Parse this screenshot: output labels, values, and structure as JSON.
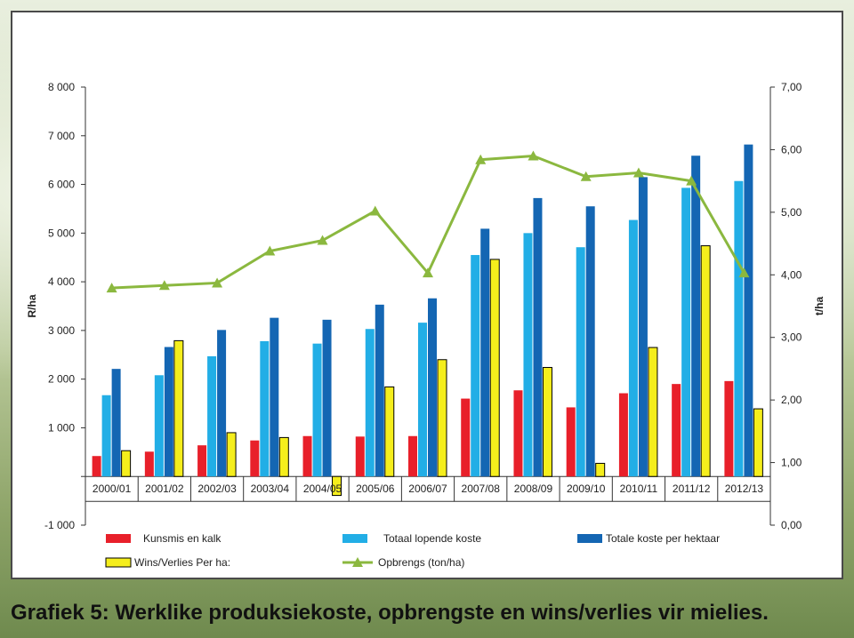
{
  "caption": "Grafiek 5: Werklike produksiekoste, opbrengste en wins/verlies vir mielies.",
  "chart_data": {
    "type": "bar",
    "categories": [
      "2000/01",
      "2001/02",
      "2002/03",
      "2003/04",
      "2004/05",
      "2005/06",
      "2006/07",
      "2007/08",
      "2008/09",
      "2009/10",
      "2010/11",
      "2011/12",
      "2012/13"
    ],
    "ylabel": "R/ha",
    "y2label": "t/ha",
    "ylim": [
      -1000,
      8000
    ],
    "y2lim": [
      0,
      7
    ],
    "y_ticks": [
      "-1 000",
      "",
      "1 000",
      "2 000",
      "3 000",
      "4 000",
      "5 000",
      "6 000",
      "7 000",
      "8 000"
    ],
    "y2_ticks": [
      "0,00",
      "1,00",
      "2,00",
      "3,00",
      "4,00",
      "5,00",
      "6,00",
      "7,00"
    ],
    "series": [
      {
        "name": "Kunsmis en kalk",
        "color": "#e8202a",
        "values": [
          420,
          510,
          640,
          740,
          830,
          820,
          830,
          1600,
          1770,
          1420,
          1710,
          1900,
          1960
        ]
      },
      {
        "name": "Totaal lopende koste",
        "color": "#22aee6",
        "values": [
          1670,
          2080,
          2470,
          2780,
          2730,
          3030,
          3160,
          4550,
          5000,
          4710,
          5270,
          5930,
          6070
        ]
      },
      {
        "name": "Totale koste per hektaar",
        "color": "#1466b3",
        "values": [
          2210,
          2660,
          3010,
          3260,
          3220,
          3530,
          3660,
          5090,
          5720,
          5550,
          6150,
          6590,
          6820
        ]
      },
      {
        "name": "Wins/Verlies Per ha:",
        "color": "#f5ee1c",
        "values": [
          530,
          2790,
          900,
          800,
          -390,
          1840,
          2400,
          4460,
          2240,
          270,
          2650,
          4740,
          1390
        ]
      }
    ],
    "line": {
      "name": "Opbrengs (ton/ha)",
      "color": "#8bb83f",
      "axis": "right",
      "values": [
        3.79,
        3.83,
        3.87,
        4.38,
        4.55,
        5.02,
        4.03,
        5.84,
        5.9,
        5.57,
        5.63,
        5.5,
        4.03
      ]
    },
    "legend": "bottom"
  }
}
